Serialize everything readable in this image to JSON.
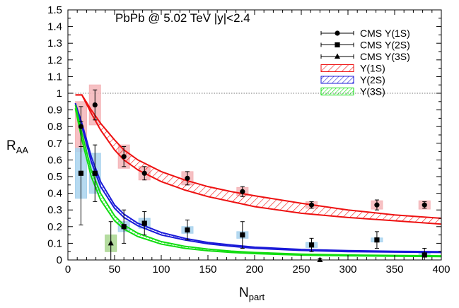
{
  "chart_data": {
    "type": "scatter",
    "annotation": "PbPb @ 5.02 TeV |y|<2.4",
    "xlabel_main": "N",
    "xlabel_sub": "part",
    "ylabel_main": "R",
    "ylabel_sub": "AA",
    "xlim": [
      0,
      400
    ],
    "ylim": [
      0,
      1.5
    ],
    "x_ticks": [
      0,
      50,
      100,
      150,
      200,
      250,
      300,
      350,
      400
    ],
    "y_ticks": [
      0,
      0.1,
      0.2,
      0.3,
      0.4,
      0.5,
      0.6,
      0.7,
      0.8,
      0.9,
      1,
      1.1,
      1.2,
      1.3,
      1.4,
      1.5
    ],
    "reference_line": 1.0,
    "grid": false,
    "legend_position": "top-right",
    "legend": [
      {
        "label": "CMS Υ(1S)",
        "kind": "points",
        "marker": "circle"
      },
      {
        "label": "CMS Υ(2S)",
        "kind": "points",
        "marker": "square"
      },
      {
        "label": "CMS Υ(3S)",
        "kind": "points",
        "marker": "triangle"
      },
      {
        "label": "Υ(1S)",
        "kind": "band",
        "color": "#ee1111"
      },
      {
        "label": "Υ(2S)",
        "kind": "band",
        "color": "#1a1ad8"
      },
      {
        "label": "Υ(3S)",
        "kind": "band",
        "color": "#11dd11"
      }
    ],
    "data_series": [
      {
        "marker": "circle",
        "box_color": "#f5b5b8",
        "points": [
          {
            "x": 14,
            "y": 0.8,
            "err": 0.12,
            "sys": 0.15
          },
          {
            "x": 29,
            "y": 0.93,
            "err": 0.09,
            "sys": 0.12
          },
          {
            "x": 60,
            "y": 0.62,
            "err": 0.06,
            "sys": 0.07
          },
          {
            "x": 82,
            "y": 0.52,
            "err": 0.04,
            "sys": 0.04
          },
          {
            "x": 128,
            "y": 0.49,
            "err": 0.04,
            "sys": 0.04
          },
          {
            "x": 187,
            "y": 0.41,
            "err": 0.03,
            "sys": 0.025
          },
          {
            "x": 261,
            "y": 0.33,
            "err": 0.02,
            "sys": 0.02
          },
          {
            "x": 331,
            "y": 0.33,
            "err": 0.03,
            "sys": 0.025
          },
          {
            "x": 382,
            "y": 0.33,
            "err": 0.02,
            "sys": 0.025
          }
        ]
      },
      {
        "marker": "square",
        "box_color": "#a9d3ee",
        "points": [
          {
            "x": 14,
            "y": 0.52,
            "err": 0.31,
            "sys": 0.15
          },
          {
            "x": 29,
            "y": 0.52,
            "err": 0.17,
            "sys": 0.12
          },
          {
            "x": 60,
            "y": 0.2,
            "err": 0.1,
            "sys": 0.03
          },
          {
            "x": 82,
            "y": 0.22,
            "err": 0.07,
            "sys": 0.03
          },
          {
            "x": 128,
            "y": 0.18,
            "err": 0.06,
            "sys": 0.02
          },
          {
            "x": 187,
            "y": 0.15,
            "err": 0.08,
            "sys": 0.02
          },
          {
            "x": 261,
            "y": 0.09,
            "err": 0.04,
            "sys": 0.015
          },
          {
            "x": 331,
            "y": 0.12,
            "err": 0.05,
            "sys": 0.012
          },
          {
            "x": 382,
            "y": 0.03,
            "err": 0.04,
            "sys": 0.01
          }
        ]
      },
      {
        "marker": "triangle",
        "box_color": "#a8d68f",
        "points": [
          {
            "x": 46,
            "y": 0.1,
            "err": 0.13,
            "sys": 0.05
          },
          {
            "x": 270,
            "y": 0.0,
            "err": 0.01,
            "sys": 0.0
          }
        ]
      }
    ],
    "model_bands": [
      {
        "name": "Υ(1S)",
        "color": "#ee1111",
        "x": [
          8,
          15,
          25,
          35,
          50,
          60,
          75,
          100,
          125,
          150,
          175,
          200,
          250,
          300,
          350,
          400
        ],
        "upper": [
          0.99,
          0.99,
          0.9,
          0.82,
          0.72,
          0.66,
          0.6,
          0.53,
          0.48,
          0.44,
          0.41,
          0.385,
          0.34,
          0.3,
          0.27,
          0.25
        ],
        "lower": [
          0.99,
          0.99,
          0.88,
          0.78,
          0.66,
          0.6,
          0.54,
          0.47,
          0.42,
          0.38,
          0.35,
          0.32,
          0.28,
          0.255,
          0.235,
          0.215
        ]
      },
      {
        "name": "Υ(2S)",
        "color": "#1a1ad8",
        "x": [
          8,
          15,
          25,
          35,
          50,
          60,
          75,
          100,
          125,
          150,
          175,
          200,
          250,
          300,
          350,
          400
        ],
        "upper": [
          0.94,
          0.82,
          0.62,
          0.47,
          0.33,
          0.275,
          0.22,
          0.165,
          0.13,
          0.105,
          0.09,
          0.077,
          0.063,
          0.056,
          0.052,
          0.05
        ],
        "lower": [
          0.94,
          0.8,
          0.59,
          0.44,
          0.31,
          0.255,
          0.205,
          0.15,
          0.12,
          0.097,
          0.082,
          0.07,
          0.057,
          0.05,
          0.047,
          0.045
        ]
      },
      {
        "name": "Υ(3S)",
        "color": "#11dd11",
        "x": [
          8,
          15,
          25,
          35,
          50,
          60,
          75,
          100,
          125,
          150,
          175,
          200,
          250,
          300,
          350,
          400
        ],
        "upper": [
          0.93,
          0.76,
          0.54,
          0.4,
          0.265,
          0.21,
          0.16,
          0.11,
          0.082,
          0.065,
          0.053,
          0.045,
          0.035,
          0.03,
          0.027,
          0.025
        ],
        "lower": [
          0.91,
          0.72,
          0.5,
          0.36,
          0.235,
          0.185,
          0.14,
          0.095,
          0.07,
          0.055,
          0.045,
          0.038,
          0.029,
          0.025,
          0.022,
          0.02
        ]
      }
    ]
  }
}
